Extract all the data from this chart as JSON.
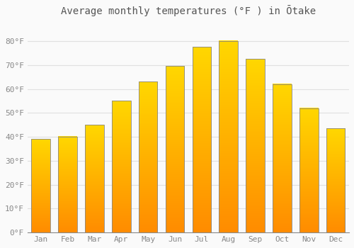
{
  "title": "Average monthly temperatures (°F ) in Ōtake",
  "months": [
    "Jan",
    "Feb",
    "Mar",
    "Apr",
    "May",
    "Jun",
    "Jul",
    "Aug",
    "Sep",
    "Oct",
    "Nov",
    "Dec"
  ],
  "values": [
    39,
    40,
    45,
    55,
    63,
    69.5,
    77.5,
    80,
    72.5,
    62,
    52,
    43.5
  ],
  "bar_color_top": "#FFB300",
  "bar_color_bottom": "#FF8C00",
  "bar_edge_color": "#888888",
  "ylim": [
    0,
    88
  ],
  "yticks": [
    0,
    10,
    20,
    30,
    40,
    50,
    60,
    70,
    80
  ],
  "ytick_labels": [
    "0°F",
    "10°F",
    "20°F",
    "30°F",
    "40°F",
    "50°F",
    "60°F",
    "70°F",
    "80°F"
  ],
  "background_color": "#FAFAFA",
  "grid_color": "#E0E0E0",
  "title_fontsize": 10,
  "tick_fontsize": 8,
  "bar_width": 0.7,
  "figsize": [
    5.0,
    3.5
  ],
  "dpi": 100
}
